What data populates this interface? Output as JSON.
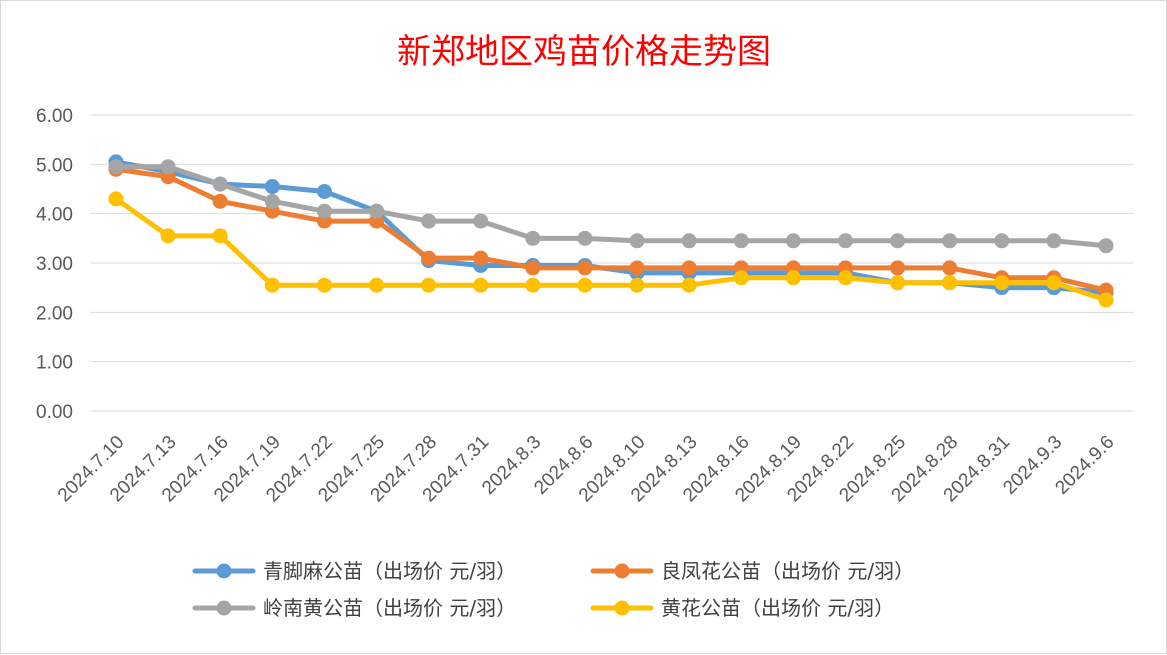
{
  "chart_data": {
    "type": "line",
    "title": "新郑地区鸡苗价格走势图",
    "xlabel": "",
    "ylabel": "",
    "ylim": [
      0,
      6
    ],
    "y_ticks": [
      "0.00",
      "1.00",
      "2.00",
      "3.00",
      "4.00",
      "5.00",
      "6.00"
    ],
    "categories": [
      "2024.7.10",
      "2024.7.13",
      "2024.7.16",
      "2024.7.19",
      "2024.7.22",
      "2024.7.25",
      "2024.7.28",
      "2024.7.31",
      "2024.8.3",
      "2024.8.6",
      "2024.8.10",
      "2024.8.13",
      "2024.8.16",
      "2024.8.19",
      "2024.8.22",
      "2024.8.25",
      "2024.8.28",
      "2024.8.31",
      "2024.9.3",
      "2024.9.6"
    ],
    "grid": true,
    "legend_position": "bottom",
    "series": [
      {
        "name": "青脚麻公苗（出场价 元/羽）",
        "color": "#5b9bd5",
        "values": [
          5.05,
          4.85,
          4.6,
          4.55,
          4.45,
          4.05,
          3.05,
          2.95,
          2.95,
          2.95,
          2.8,
          2.8,
          2.8,
          2.8,
          2.8,
          2.6,
          2.6,
          2.5,
          2.5,
          2.4
        ]
      },
      {
        "name": "良凤花公苗（出场价 元/羽）",
        "color": "#ed7d31",
        "values": [
          4.9,
          4.75,
          4.25,
          4.05,
          3.85,
          3.85,
          3.1,
          3.1,
          2.9,
          2.9,
          2.9,
          2.9,
          2.9,
          2.9,
          2.9,
          2.9,
          2.9,
          2.7,
          2.7,
          2.45
        ]
      },
      {
        "name": "岭南黄公苗（出场价 元/羽）",
        "color": "#a5a5a5",
        "values": [
          4.95,
          4.95,
          4.6,
          4.25,
          4.05,
          4.05,
          3.85,
          3.85,
          3.5,
          3.5,
          3.45,
          3.45,
          3.45,
          3.45,
          3.45,
          3.45,
          3.45,
          3.45,
          3.45,
          3.35
        ]
      },
      {
        "name": "黄花公苗（出场价 元/羽）",
        "color": "#ffc000",
        "values": [
          4.3,
          3.55,
          3.55,
          2.55,
          2.55,
          2.55,
          2.55,
          2.55,
          2.55,
          2.55,
          2.55,
          2.55,
          2.7,
          2.7,
          2.7,
          2.6,
          2.6,
          2.6,
          2.6,
          2.25
        ]
      }
    ]
  }
}
